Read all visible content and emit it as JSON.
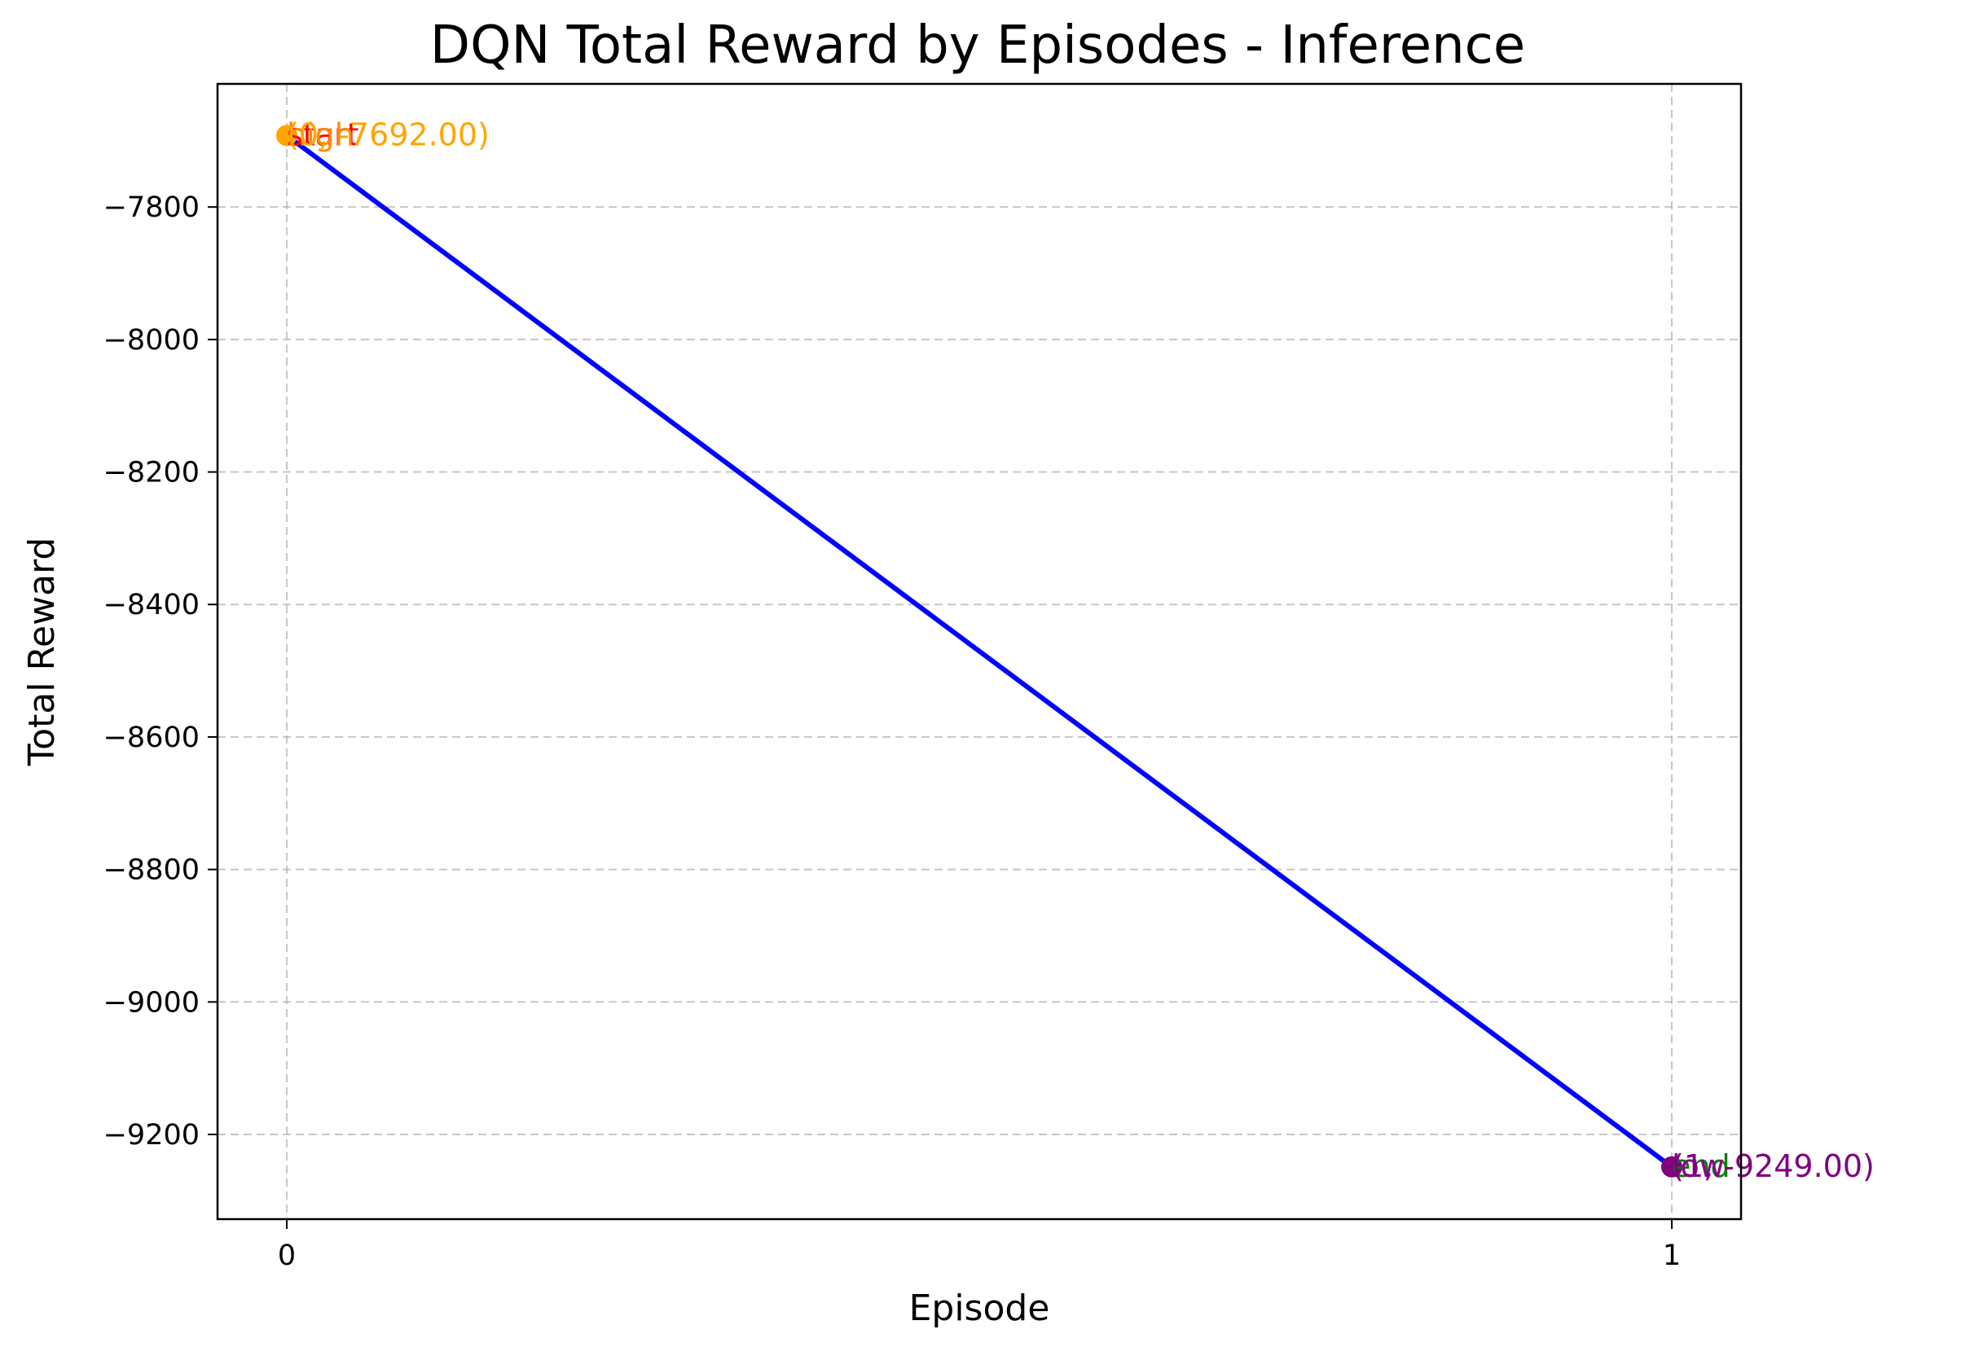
{
  "chart_data": {
    "type": "line",
    "title": "DQN Total Reward by Episodes - Inference",
    "xlabel": "Episode",
    "ylabel": "Total Reward",
    "x": [
      0,
      1
    ],
    "series": [
      {
        "values": [
          -7692,
          -9249
        ],
        "color": "#0000ff"
      }
    ],
    "xlim": [
      -0.05,
      1.05
    ],
    "ylim": [
      -9327.85,
      -7614.15
    ],
    "xticks": [
      0,
      1
    ],
    "xtick_labels": [
      "0",
      "1"
    ],
    "yticks": [
      -7800,
      -8000,
      -8200,
      -8400,
      -8600,
      -8800,
      -9000,
      -9200
    ],
    "ytick_labels": [
      "−7800",
      "−8000",
      "−8200",
      "−8400",
      "−8600",
      "−8800",
      "−9000",
      "−9200"
    ],
    "grid": true,
    "markers": [
      {
        "x": 0,
        "y": -7692,
        "color": "#ffa500"
      },
      {
        "x": 1,
        "y": -9249,
        "color": "#800080"
      }
    ],
    "annotations": [
      {
        "x": 0,
        "y": -7692,
        "text": "start",
        "color": "#ff0000"
      },
      {
        "x": 0,
        "y": -7692,
        "text": "high",
        "color": "#ff8c00"
      },
      {
        "x": 0,
        "y": -7692,
        "text": "(0, -7692.00)",
        "color": "#ffa500"
      },
      {
        "x": 1,
        "y": -9249,
        "text": "end",
        "color": "#008000"
      },
      {
        "x": 1,
        "y": -9249,
        "text": "low",
        "color": "#8b008b"
      },
      {
        "x": 1,
        "y": -9249,
        "text": "(1, -9249.00)",
        "color": "#800080"
      }
    ]
  }
}
